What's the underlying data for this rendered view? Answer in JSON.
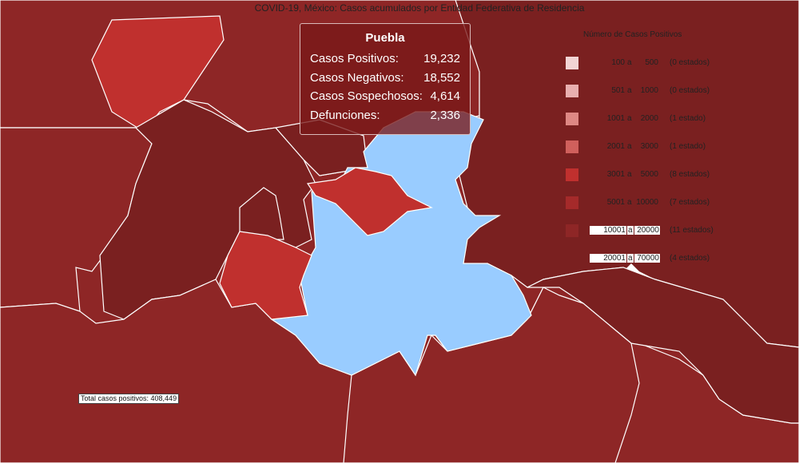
{
  "map": {
    "title": "COVID-19, México: Casos acumulados por Entidad Federativa de Residencia",
    "highlight_color": "#99CCFF",
    "border_color": "#FFFFFF",
    "colors": {
      "very_dark": "#7A2020",
      "dark": "#8E2626",
      "medium": "#C0302E"
    }
  },
  "tooltip": {
    "title": "Puebla",
    "rows": [
      {
        "label": "Casos Positivos:",
        "value": "19,232"
      },
      {
        "label": "Casos Negativos:",
        "value": "18,552"
      },
      {
        "label": "Casos Sospechosos:",
        "value": "4,614"
      },
      {
        "label": "Defunciones:",
        "value": "2,336"
      }
    ]
  },
  "legend": {
    "title": "Número de Casos Positivos",
    "items": [
      {
        "from": "100",
        "sep": "a",
        "to": "500",
        "count": "(0 estados)",
        "color": "#F2D4D4"
      },
      {
        "from": "501",
        "sep": "a",
        "to": "1000",
        "count": "(0 estados)",
        "color": "#E8AFAF"
      },
      {
        "from": "1001",
        "sep": "a",
        "to": "2000",
        "count": "(1 estado)",
        "color": "#DE8884"
      },
      {
        "from": "2001",
        "sep": "a",
        "to": "3000",
        "count": "(1 estado)",
        "color": "#D0605C"
      },
      {
        "from": "3001",
        "sep": "a",
        "to": "5000",
        "count": "(8 estados)",
        "color": "#C0302E"
      },
      {
        "from": "5001",
        "sep": "a",
        "to": "10000",
        "count": "(7 estados)",
        "color": "#A52A2A"
      },
      {
        "from": "10001",
        "sep": "a",
        "to": "20000",
        "count": "(11 estados)",
        "color": "#8E2626"
      },
      {
        "from": "20001",
        "sep": "a",
        "to": "70000",
        "count": "(4 estados)",
        "color": "#7A2020"
      }
    ]
  },
  "total": {
    "label": "Total casos positivos: 408,449"
  }
}
